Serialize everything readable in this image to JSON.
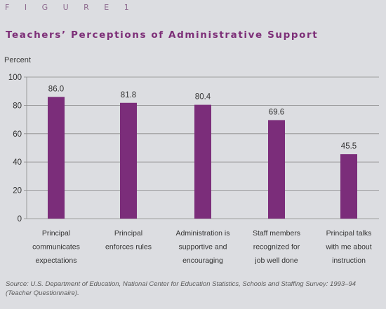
{
  "figure_label": "F I G U R E 1",
  "title": "Teachers’ Perceptions of Administrative Support",
  "source": "Source: U.S. Department of Education, National Center for Education Statistics, Schools and Staffing Survey: 1993–94 (Teacher Questionnaire).",
  "colors": {
    "bar": "#7b2d7a",
    "title": "#7d2f78",
    "grid": "#8a8a8a",
    "background": "#dcdde1"
  },
  "chart_data": {
    "type": "bar",
    "ylabel": "Percent",
    "xlabel": "",
    "ylim": [
      0,
      100
    ],
    "yticks": [
      0,
      20,
      40,
      60,
      80,
      100
    ],
    "grid": true,
    "categories": [
      [
        "Principal",
        "communicates",
        "expectations"
      ],
      [
        "Principal",
        "enforces rules"
      ],
      [
        "Administration is",
        "supportive and",
        "encouraging"
      ],
      [
        "Staff members",
        "recognized for",
        "job well done"
      ],
      [
        "Principal talks",
        "with me about",
        "instruction"
      ]
    ],
    "values": [
      86.0,
      81.8,
      80.4,
      69.6,
      45.5
    ],
    "value_labels": [
      "86.0",
      "81.8",
      "80.4",
      "69.6",
      "45.5"
    ]
  }
}
